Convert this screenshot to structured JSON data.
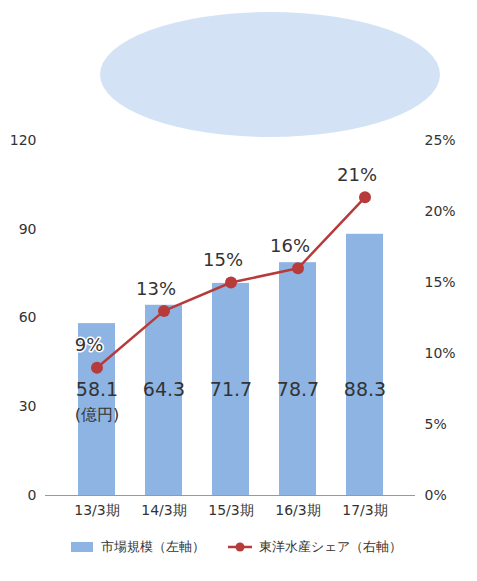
{
  "chart_data": {
    "type": "bar",
    "categories": [
      "13/3期",
      "14/3期",
      "15/3期",
      "16/3期",
      "17/3期"
    ],
    "series": [
      {
        "name": "市場規模（左軸）",
        "type": "bar",
        "color": "#8eb4e3",
        "values": [
          58.1,
          64.3,
          71.7,
          78.7,
          88.3
        ],
        "data_labels": true
      },
      {
        "name": "東洋水産シェア（右軸）",
        "type": "line",
        "axis": "y2",
        "color": "#b83b3b",
        "marker": "circle",
        "values": [
          9,
          13,
          15,
          16,
          21
        ],
        "value_labels": [
          "9%",
          "13%",
          "15%",
          "16%",
          "21%"
        ],
        "data_labels": true
      }
    ],
    "ylim": [
      0,
      120
    ],
    "yticks": [
      0,
      30,
      60,
      90,
      120
    ],
    "y2lim": [
      0,
      25
    ],
    "y2ticks": [
      {
        "value": 0,
        "label": "0%"
      },
      {
        "value": 5,
        "label": "5%"
      },
      {
        "value": 10,
        "label": "10%"
      },
      {
        "value": 15,
        "label": "15%"
      },
      {
        "value": 20,
        "label": "20%"
      },
      {
        "value": 25,
        "label": "25%"
      }
    ],
    "annotations": [
      {
        "text": "(億円)",
        "category": "13/3期"
      }
    ],
    "legend": "bottom",
    "grid": false
  }
}
